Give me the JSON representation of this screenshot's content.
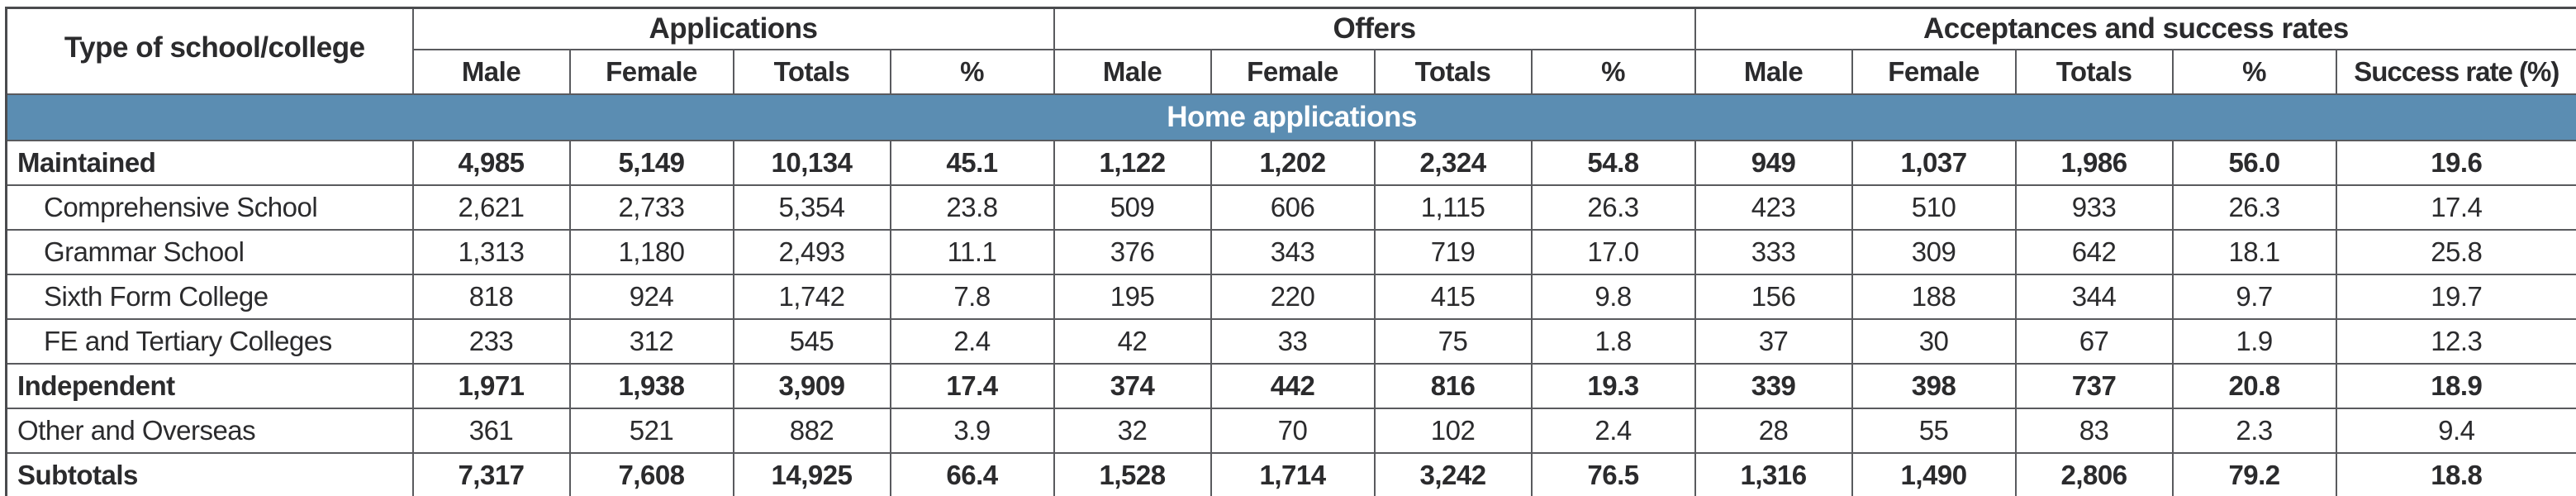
{
  "colors": {
    "banner_background": "#5b8db2",
    "banner_text": "#ffffff",
    "border": "#595a5e",
    "accent_strip": "#5b8db2",
    "text": "#2b2b2d"
  },
  "table": {
    "row_header_label": "Type of school/college",
    "banner_label": "Home applications",
    "groups": [
      {
        "key": "applications",
        "label": "Applications",
        "columns": [
          {
            "key": "male",
            "label": "Male"
          },
          {
            "key": "female",
            "label": "Female"
          },
          {
            "key": "totals",
            "label": "Totals"
          },
          {
            "key": "pct",
            "label": "%"
          }
        ]
      },
      {
        "key": "offers",
        "label": "Offers",
        "columns": [
          {
            "key": "male",
            "label": "Male"
          },
          {
            "key": "female",
            "label": "Female"
          },
          {
            "key": "totals",
            "label": "Totals"
          },
          {
            "key": "pct",
            "label": "%"
          }
        ]
      },
      {
        "key": "acceptances",
        "label": "Acceptances and success rates",
        "columns": [
          {
            "key": "male",
            "label": "Male"
          },
          {
            "key": "female",
            "label": "Female"
          },
          {
            "key": "totals",
            "label": "Totals"
          },
          {
            "key": "pct",
            "label": "%"
          },
          {
            "key": "success_rate",
            "label": "Success rate (%)"
          }
        ]
      }
    ],
    "rows": [
      {
        "label": "Maintained",
        "bold": true,
        "indent": false,
        "values": [
          "4,985",
          "5,149",
          "10,134",
          "45.1",
          "1,122",
          "1,202",
          "2,324",
          "54.8",
          "949",
          "1,037",
          "1,986",
          "56.0",
          "19.6"
        ]
      },
      {
        "label": "Comprehensive School",
        "bold": false,
        "indent": true,
        "values": [
          "2,621",
          "2,733",
          "5,354",
          "23.8",
          "509",
          "606",
          "1,115",
          "26.3",
          "423",
          "510",
          "933",
          "26.3",
          "17.4"
        ]
      },
      {
        "label": "Grammar School",
        "bold": false,
        "indent": true,
        "values": [
          "1,313",
          "1,180",
          "2,493",
          "11.1",
          "376",
          "343",
          "719",
          "17.0",
          "333",
          "309",
          "642",
          "18.1",
          "25.8"
        ]
      },
      {
        "label": "Sixth Form College",
        "bold": false,
        "indent": true,
        "values": [
          "818",
          "924",
          "1,742",
          "7.8",
          "195",
          "220",
          "415",
          "9.8",
          "156",
          "188",
          "344",
          "9.7",
          "19.7"
        ]
      },
      {
        "label": "FE and Tertiary Colleges",
        "bold": false,
        "indent": true,
        "values": [
          "233",
          "312",
          "545",
          "2.4",
          "42",
          "33",
          "75",
          "1.8",
          "37",
          "30",
          "67",
          "1.9",
          "12.3"
        ]
      },
      {
        "label": "Independent",
        "bold": true,
        "indent": false,
        "values": [
          "1,971",
          "1,938",
          "3,909",
          "17.4",
          "374",
          "442",
          "816",
          "19.3",
          "339",
          "398",
          "737",
          "20.8",
          "18.9"
        ]
      },
      {
        "label": "Other and Overseas",
        "bold": false,
        "indent": false,
        "values": [
          "361",
          "521",
          "882",
          "3.9",
          "32",
          "70",
          "102",
          "2.4",
          "28",
          "55",
          "83",
          "2.3",
          "9.4"
        ]
      },
      {
        "label": "Subtotals",
        "bold": true,
        "indent": false,
        "values": [
          "7,317",
          "7,608",
          "14,925",
          "66.4",
          "1,528",
          "1,714",
          "3,242",
          "76.5",
          "1,316",
          "1,490",
          "2,806",
          "79.2",
          "18.8"
        ]
      }
    ]
  }
}
